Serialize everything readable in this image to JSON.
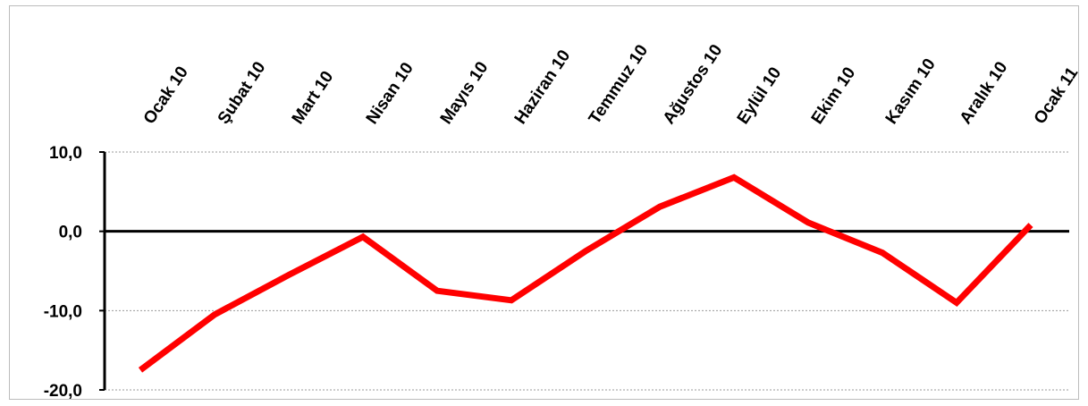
{
  "chart_data": {
    "type": "line",
    "title": "",
    "xlabel": "",
    "ylabel": "",
    "categories": [
      "Ocak 10",
      "Şubat 10",
      "Mart 10",
      "Nisan 10",
      "Mayıs 10",
      "Haziran 10",
      "Temmuz 10",
      "Ağustos 10",
      "Eylül 10",
      "Ekim 10",
      "Kasım 10",
      "Aralık 10",
      "Ocak 11"
    ],
    "series": [
      {
        "values": [
          -17.5,
          -10.5,
          -5.5,
          -0.7,
          -7.5,
          -8.7,
          -2.5,
          3.1,
          6.8,
          1.1,
          -2.7,
          -9.0,
          0.8
        ],
        "color": "#ff0000"
      }
    ],
    "ylim": [
      -20,
      10
    ],
    "yticks": [
      10,
      0,
      -10,
      -20
    ],
    "ytick_labels": [
      "10,0",
      "0,0",
      "-10,0",
      "-20,0"
    ],
    "grid": true,
    "legend": "none",
    "x_labels_position": "top-rotated"
  }
}
